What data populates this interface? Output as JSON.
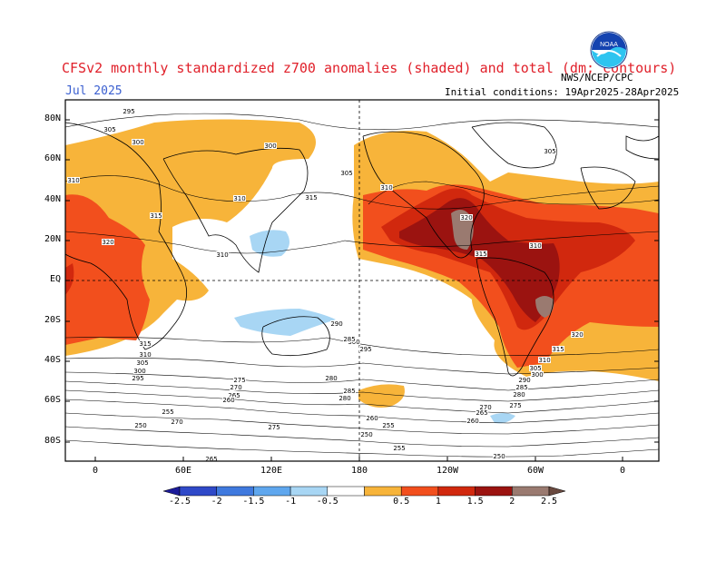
{
  "header": {
    "title": "CFSv2 monthly standardized z700 anomalies (shaded) and total (dm; contours)",
    "month": "Jul 2025",
    "initial_conditions": "Initial conditions: 19Apr2025-28Apr2025",
    "organization": "NWS/NCEP/CPC",
    "logo_text": "NOAA"
  },
  "axes": {
    "lat_labels": [
      "80N",
      "60N",
      "40N",
      "20N",
      "EQ",
      "20S",
      "40S",
      "60S",
      "80S"
    ],
    "lon_labels": [
      "0",
      "60E",
      "120E",
      "180",
      "120W",
      "60W",
      "0"
    ]
  },
  "colorbar": {
    "colors": [
      "#1c1b9a",
      "#2f49c8",
      "#3f79de",
      "#5fa7ee",
      "#a8d6f4",
      "#ffffff",
      "#f7b43a",
      "#f24f1d",
      "#d1280e",
      "#9b1310",
      "#9a7a70",
      "#6a4a40"
    ],
    "labels": [
      "-2.5",
      "-2",
      "-1.5",
      "-1",
      "-0.5",
      "0.5",
      "1",
      "1.5",
      "2",
      "2.5"
    ]
  },
  "contours": {
    "labels": [
      "295",
      "305",
      "300",
      "310",
      "310",
      "315",
      "320",
      "310",
      "315",
      "310",
      "305",
      "300",
      "305",
      "295",
      "300",
      "315",
      "320",
      "310",
      "315",
      "320",
      "315",
      "310",
      "305",
      "300",
      "290",
      "285",
      "280",
      "275",
      "270",
      "265",
      "260",
      "255",
      "250",
      "280",
      "285",
      "275",
      "270",
      "265",
      "260",
      "255",
      "250",
      "310",
      "305",
      "300",
      "295",
      "290",
      "285",
      "280",
      "275",
      "270",
      "265",
      "260",
      "255",
      "250"
    ]
  }
}
